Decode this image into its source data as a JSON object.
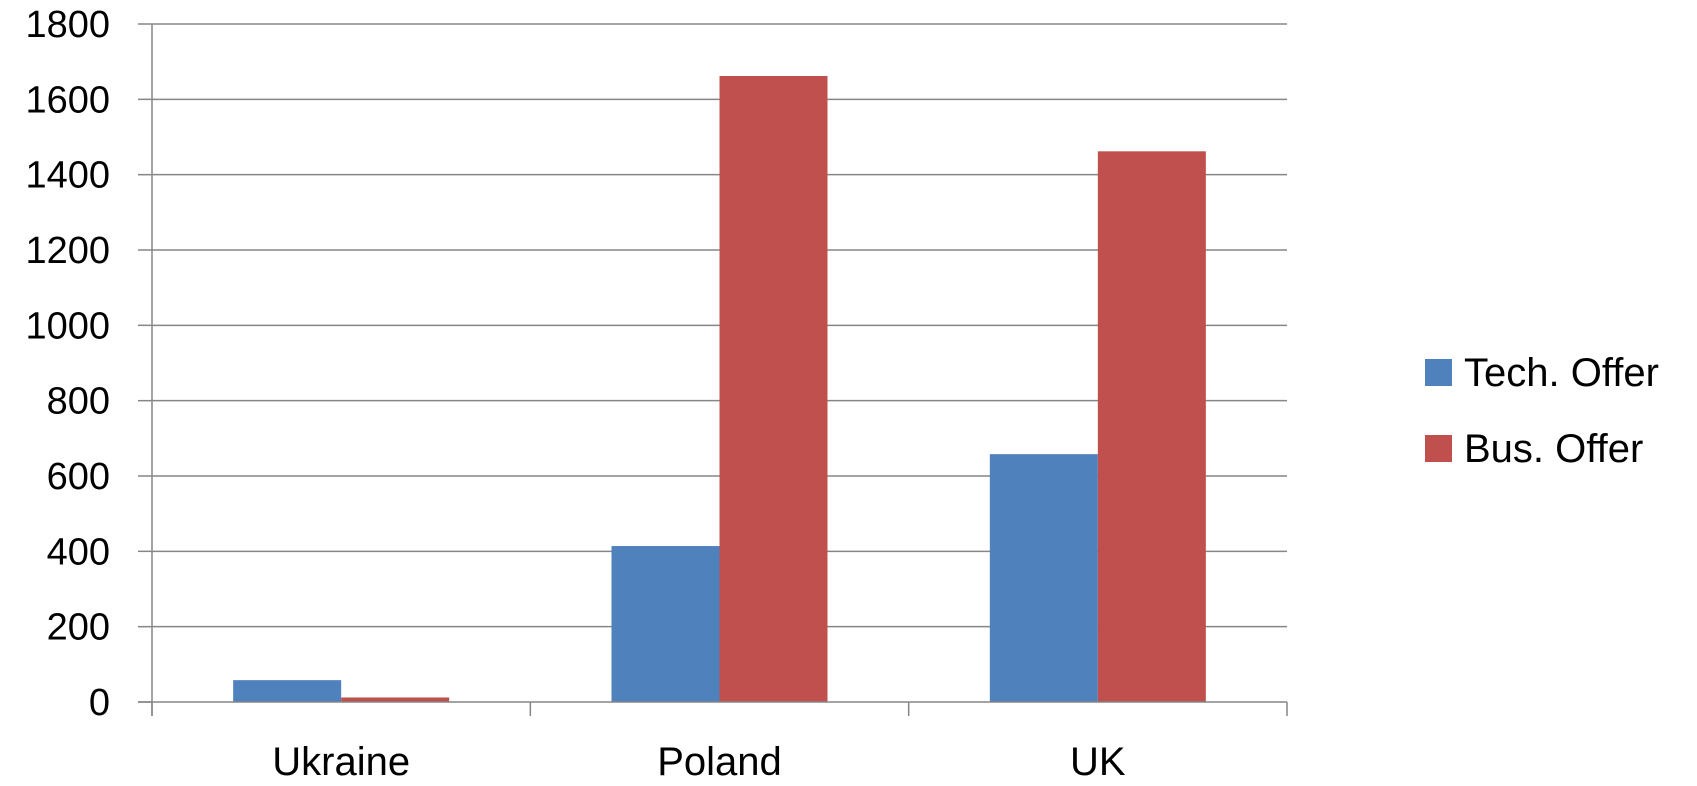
{
  "chart_data": {
    "type": "bar",
    "title": "",
    "xlabel": "",
    "ylabel": "",
    "categories": [
      "Ukraine",
      "Poland",
      "UK"
    ],
    "series": [
      {
        "name": "Tech. Offer",
        "values": [
          58,
          414,
          658
        ]
      },
      {
        "name": "Bus. Offer",
        "values": [
          12,
          1662,
          1462
        ]
      }
    ],
    "ylim": [
      0,
      1800
    ],
    "yticks": [
      0,
      200,
      400,
      600,
      800,
      1000,
      1200,
      1400,
      1600,
      1800
    ],
    "grid": true,
    "legend_position": "right"
  },
  "colors": {
    "Tech. Offer": "#4F81BD",
    "Bus. Offer": "#C0504D",
    "grid": "#868686"
  }
}
